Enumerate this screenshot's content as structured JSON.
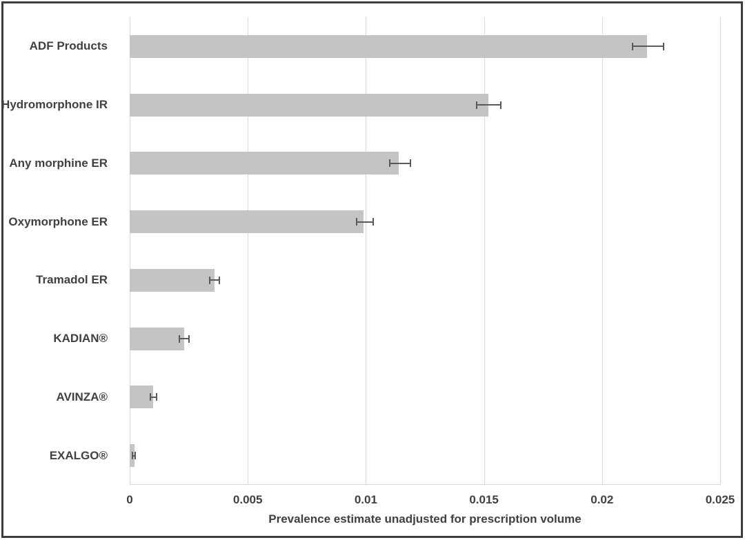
{
  "chart_data": {
    "type": "bar",
    "orientation": "horizontal",
    "title": "",
    "xlabel": "Prevalence estimate unadjusted for prescription volume",
    "ylabel": "",
    "xlim": [
      0,
      0.025
    ],
    "grid": true,
    "legend": false,
    "categories": [
      "ADF Products",
      "Hydromorphone IR",
      "Any morphine ER",
      "Oxymorphone ER",
      "Tramadol ER",
      "KADIAN®",
      "AVINZA®",
      "EXALGO®"
    ],
    "values": [
      0.0219,
      0.0152,
      0.0114,
      0.0099,
      0.0036,
      0.0023,
      0.001,
      0.0002
    ],
    "error_low": [
      0.0213,
      0.0147,
      0.011,
      0.0096,
      0.0034,
      0.0021,
      0.00088,
      0.00012
    ],
    "error_high": [
      0.0226,
      0.0157,
      0.0119,
      0.0103,
      0.0038,
      0.0025,
      0.00114,
      0.00023
    ],
    "x_ticks": [
      0,
      0.005,
      0.01,
      0.015,
      0.02,
      0.025
    ],
    "x_tick_labels": [
      "0",
      "0.005",
      "0.01",
      "0.015",
      "0.02",
      "0.025"
    ]
  },
  "colors": {
    "bar_fill": "#c4c4c4",
    "error_bar": "#595959",
    "gridline": "#d9d9d9",
    "text": "#404040",
    "frame_border": "#3d3d3d",
    "background": "#ffffff"
  }
}
